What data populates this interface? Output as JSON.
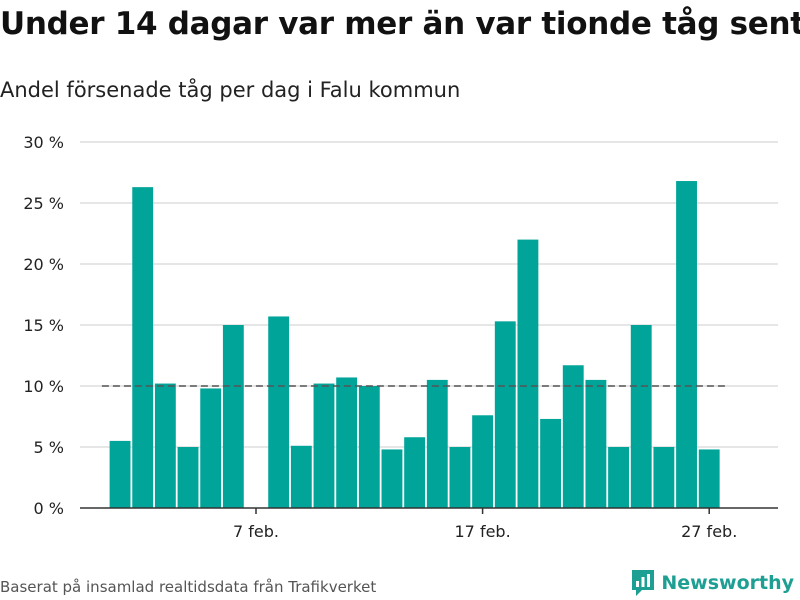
{
  "title": "Under 14 dagar var mer än var tionde tåg sent",
  "subtitle": "Andel försenade tåg per dag i Falu kommun",
  "source": "Baserat på insamlad realtidsdata från Trafikverket",
  "brand": "Newsworthy",
  "colors": {
    "bar": "#00a498",
    "grid": "#dddddd",
    "reference": "#555555",
    "brand": "#1e9f93"
  },
  "chart_data": {
    "type": "bar",
    "x_start": 1,
    "x_end": 31,
    "values": [
      5.5,
      26.3,
      10.2,
      5.0,
      9.8,
      15.0,
      null,
      15.7,
      5.1,
      10.2,
      10.7,
      10.0,
      4.8,
      5.8,
      10.5,
      5.0,
      7.6,
      15.3,
      22.0,
      7.3,
      11.7,
      10.5,
      5.0,
      15.0,
      5.0,
      26.8,
      4.8
    ],
    "x_ticks": [
      {
        "x": 7,
        "label": "7 feb."
      },
      {
        "x": 17,
        "label": "17 feb."
      },
      {
        "x": 27,
        "label": "27 feb."
      }
    ],
    "y_ticks": [
      {
        "y": 0,
        "label": "0 %"
      },
      {
        "y": 5,
        "label": "5 %"
      },
      {
        "y": 10,
        "label": "10 %"
      },
      {
        "y": 15,
        "label": "15 %"
      },
      {
        "y": 20,
        "label": "20 %"
      },
      {
        "y": 25,
        "label": "25 %"
      },
      {
        "y": 30,
        "label": "30 %"
      }
    ],
    "ylim": [
      0,
      30
    ],
    "reference_line": {
      "y": 10,
      "from": 0.2,
      "to": 27.8,
      "style": "dashed"
    },
    "grid": true
  }
}
